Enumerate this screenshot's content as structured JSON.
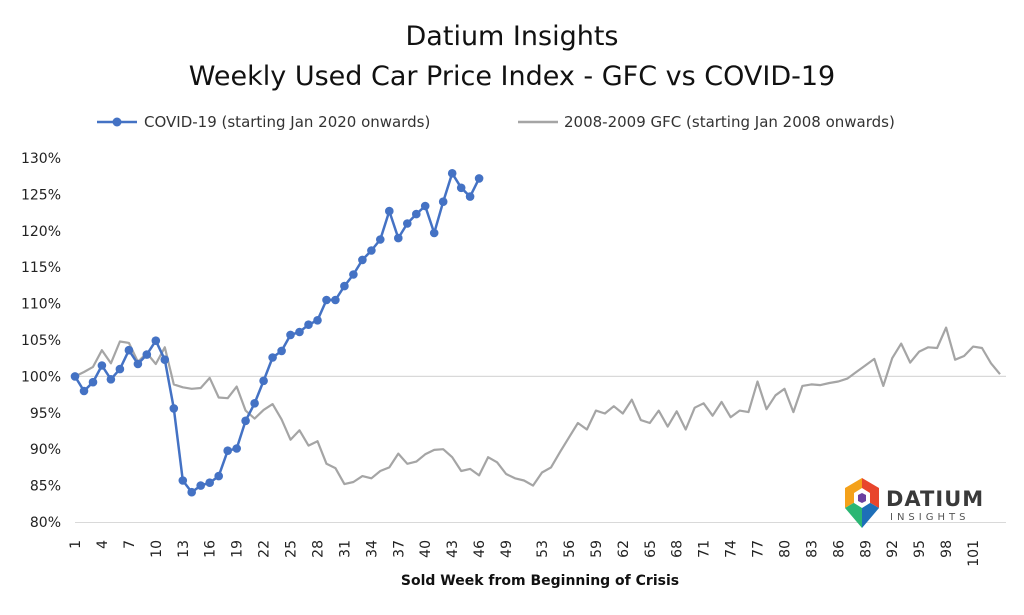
{
  "chart_data": {
    "type": "line",
    "title": "Datium Insights",
    "subtitle": "Weekly Used Car Price Index - GFC vs COVID-19",
    "xlabel": "Sold Week from Beginning of Crisis",
    "ylabel": "",
    "ylim": [
      80,
      130
    ],
    "yticks": [
      "80%",
      "85%",
      "90%",
      "95%",
      "100%",
      "105%",
      "110%",
      "115%",
      "120%",
      "125%",
      "130%"
    ],
    "xticks": [
      "1",
      "4",
      "7",
      "10",
      "13",
      "16",
      "19",
      "22",
      "25",
      "28",
      "31",
      "34",
      "37",
      "40",
      "43",
      "46",
      "49",
      "53",
      "56",
      "59",
      "62",
      "65",
      "68",
      "71",
      "74",
      "77",
      "80",
      "83",
      "86",
      "89",
      "92",
      "95",
      "98",
      "101"
    ],
    "x_count": 104,
    "reference_line": 100,
    "legend_position": "top",
    "series": [
      {
        "name": "COVID-19 (starting Jan 2020 onwards)",
        "color": "#4472c4",
        "markers": true,
        "values": [
          100.0,
          98.0,
          99.2,
          101.5,
          99.6,
          101.0,
          103.6,
          101.7,
          103.0,
          104.9,
          102.3,
          95.6,
          85.7,
          84.1,
          85.0,
          85.4,
          86.3,
          89.8,
          90.1,
          93.9,
          96.3,
          99.4,
          102.6,
          103.5,
          105.7,
          106.1,
          107.1,
          107.7,
          110.5,
          110.5,
          112.4,
          114.0,
          116.0,
          117.3,
          118.8,
          122.7,
          119.0,
          121.0,
          122.3,
          123.4,
          119.7,
          124.0,
          127.9,
          125.9,
          124.7,
          127.2
        ]
      },
      {
        "name": "2008-2009 GFC (starting Jan 2008 onwards)",
        "color": "#a5a5a5",
        "markers": false,
        "values": [
          100.0,
          100.6,
          101.3,
          103.6,
          101.8,
          104.8,
          104.6,
          102.0,
          103.2,
          101.7,
          104.0,
          98.9,
          98.5,
          98.3,
          98.4,
          99.8,
          97.1,
          97.0,
          98.6,
          95.3,
          94.2,
          95.4,
          96.2,
          94.1,
          91.3,
          92.6,
          90.5,
          91.1,
          88.0,
          87.4,
          85.2,
          85.5,
          86.3,
          86.0,
          87.0,
          87.5,
          89.4,
          88.0,
          88.3,
          89.3,
          89.9,
          90.0,
          88.9,
          87.0,
          87.3,
          86.4,
          88.9,
          88.2,
          86.6,
          86.0,
          85.7,
          85.0,
          86.8,
          87.5,
          89.6,
          91.6,
          93.6,
          92.7,
          95.3,
          94.9,
          95.9,
          94.9,
          96.8,
          94.0,
          93.6,
          95.3,
          93.1,
          95.2,
          92.7,
          95.7,
          96.3,
          94.6,
          96.5,
          94.4,
          95.3,
          95.1,
          99.3,
          95.5,
          97.4,
          98.3,
          95.1,
          98.7,
          98.9,
          98.8,
          99.1,
          99.3,
          99.7,
          100.6,
          101.5,
          102.4,
          98.7,
          102.5,
          104.5,
          101.9,
          103.4,
          104.0,
          103.9,
          106.7,
          102.3,
          102.8,
          104.1,
          103.9,
          101.8,
          100.3
        ]
      }
    ]
  },
  "logo": {
    "word": "DATIUM",
    "sub": "INSIGHTS"
  }
}
